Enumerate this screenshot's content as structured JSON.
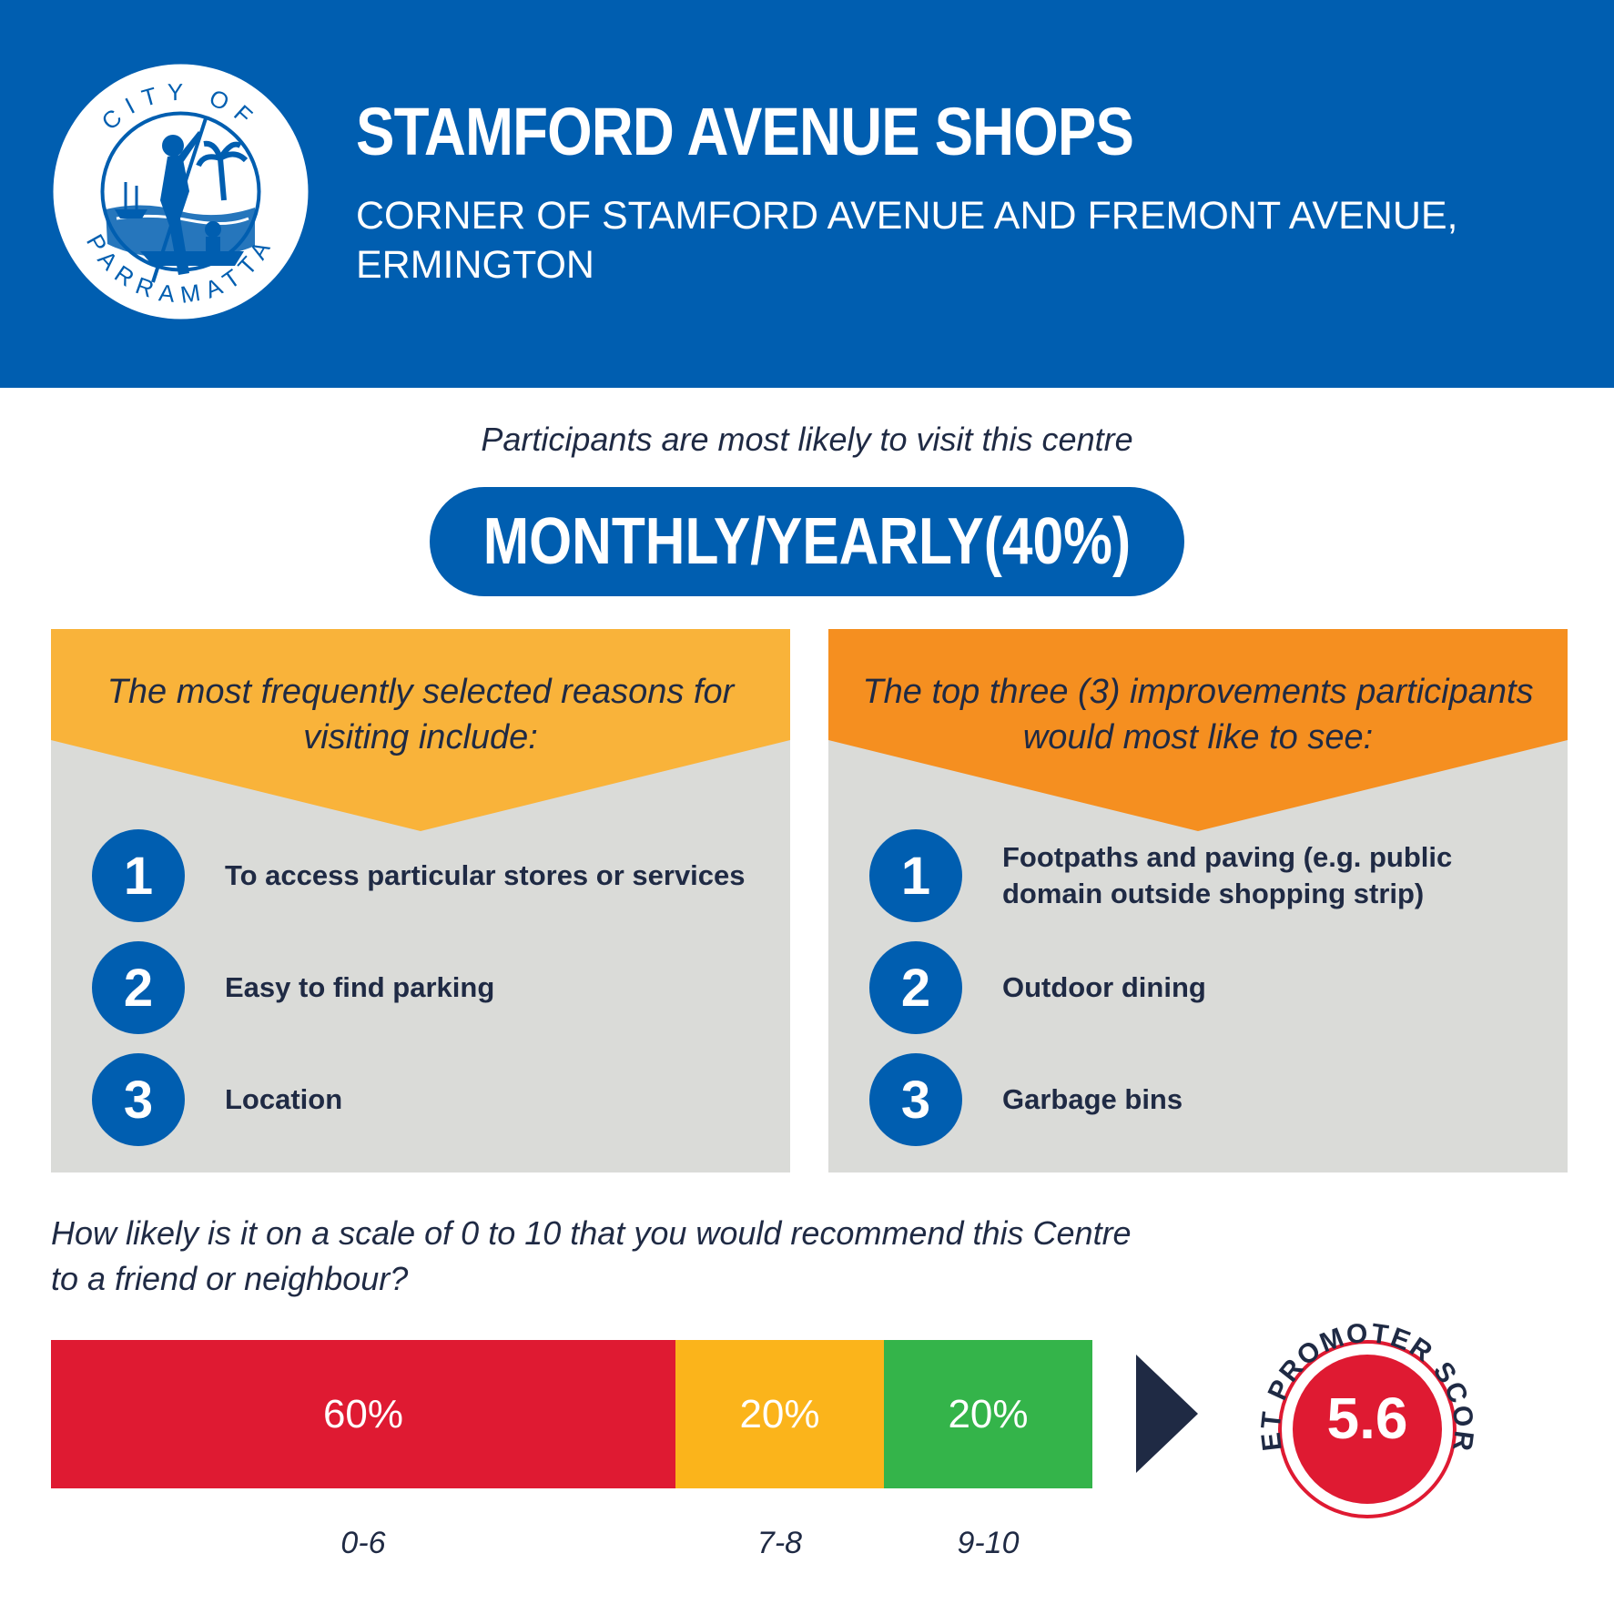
{
  "header": {
    "title": "STAMFORD AVENUE SHOPS",
    "subtitle": "CORNER OF STAMFORD AVENUE AND FREMONT AVENUE, ERMINGTON",
    "logo": {
      "top_text": "CITY OF",
      "bottom_text": "PARRAMATTA"
    }
  },
  "visit": {
    "intro": "Participants are most likely to visit this centre",
    "frequency": "MONTHLY/YEARLY(40%)"
  },
  "reasons": {
    "heading": "The most frequently selected reasons for visiting include:",
    "color": "#f9b33a",
    "items": [
      {
        "number": "1",
        "text": "To access particular stores or services"
      },
      {
        "number": "2",
        "text": "Easy to find parking"
      },
      {
        "number": "3",
        "text": "Location"
      }
    ]
  },
  "improvements": {
    "heading": "The top three (3) improvements participants would most like to see:",
    "color": "#f58f20",
    "items": [
      {
        "number": "1",
        "text": "Footpaths and paving (e.g. public domain outside shopping strip)"
      },
      {
        "number": "2",
        "text": "Outdoor dining"
      },
      {
        "number": "3",
        "text": "Garbage bins"
      }
    ]
  },
  "recommend": {
    "question": "How likely is it on a scale of 0 to 10 that you would recommend this Centre to a friend or neighbour?",
    "segments": [
      {
        "label": "60%",
        "percent": 60,
        "range": "0-6",
        "color": "#df1a32"
      },
      {
        "label": "20%",
        "percent": 20,
        "range": "7-8",
        "color": "#fbb41b"
      },
      {
        "label": "20%",
        "percent": 20,
        "range": "9-10",
        "color": "#34b44a"
      }
    ],
    "nps_label": "NET PROMOTER SCORE",
    "nps_value": "5.6"
  },
  "colors": {
    "brand_blue": "#005eb0",
    "panel_grey": "#dadbd8",
    "navy": "#1f2a44",
    "nps_red": "#df1a32"
  }
}
